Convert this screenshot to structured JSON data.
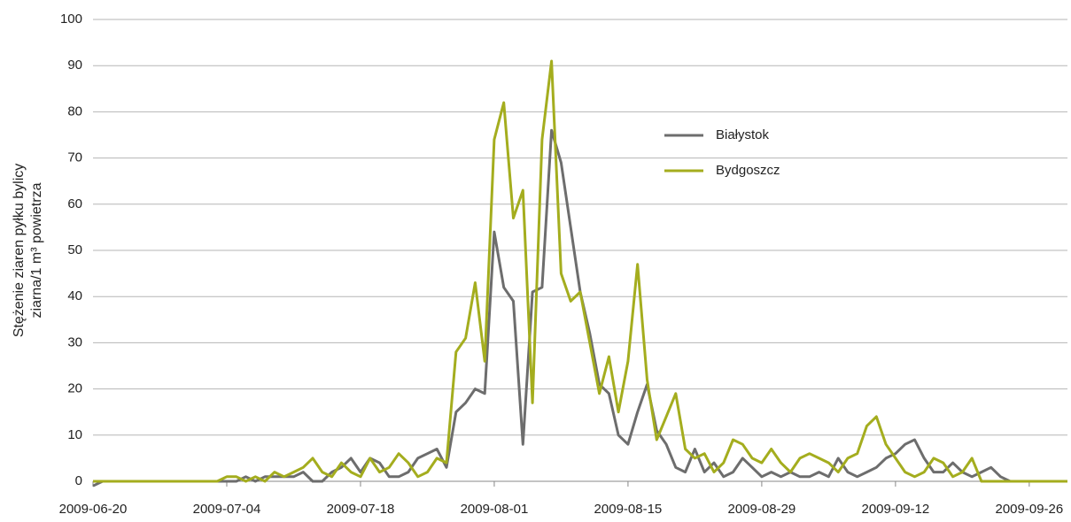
{
  "chart_data": {
    "type": "line",
    "ylabel": [
      "Stężenie ziaren pyłku bylicy",
      "ziarna/1 m³ powietrza"
    ],
    "x": [
      "2009-06-20",
      "2009-06-21",
      "2009-06-22",
      "2009-06-23",
      "2009-06-24",
      "2009-06-25",
      "2009-06-26",
      "2009-06-27",
      "2009-06-28",
      "2009-06-29",
      "2009-06-30",
      "2009-07-01",
      "2009-07-02",
      "2009-07-03",
      "2009-07-04",
      "2009-07-05",
      "2009-07-06",
      "2009-07-07",
      "2009-07-08",
      "2009-07-09",
      "2009-07-10",
      "2009-07-11",
      "2009-07-12",
      "2009-07-13",
      "2009-07-14",
      "2009-07-15",
      "2009-07-16",
      "2009-07-17",
      "2009-07-18",
      "2009-07-19",
      "2009-07-20",
      "2009-07-21",
      "2009-07-22",
      "2009-07-23",
      "2009-07-24",
      "2009-07-25",
      "2009-07-26",
      "2009-07-27",
      "2009-07-28",
      "2009-07-29",
      "2009-07-30",
      "2009-07-31",
      "2009-08-01",
      "2009-08-02",
      "2009-08-03",
      "2009-08-04",
      "2009-08-05",
      "2009-08-06",
      "2009-08-07",
      "2009-08-08",
      "2009-08-09",
      "2009-08-10",
      "2009-08-11",
      "2009-08-12",
      "2009-08-13",
      "2009-08-14",
      "2009-08-15",
      "2009-08-16",
      "2009-08-17",
      "2009-08-18",
      "2009-08-19",
      "2009-08-20",
      "2009-08-21",
      "2009-08-22",
      "2009-08-23",
      "2009-08-24",
      "2009-08-25",
      "2009-08-26",
      "2009-08-27",
      "2009-08-28",
      "2009-08-29",
      "2009-08-30",
      "2009-08-31",
      "2009-09-01",
      "2009-09-02",
      "2009-09-03",
      "2009-09-04",
      "2009-09-05",
      "2009-09-06",
      "2009-09-07",
      "2009-09-08",
      "2009-09-09",
      "2009-09-10",
      "2009-09-11",
      "2009-09-12",
      "2009-09-13",
      "2009-09-14",
      "2009-09-15",
      "2009-09-16",
      "2009-09-17",
      "2009-09-18",
      "2009-09-19",
      "2009-09-20",
      "2009-09-21",
      "2009-09-22",
      "2009-09-23",
      "2009-09-24",
      "2009-09-25",
      "2009-09-26",
      "2009-09-27",
      "2009-09-28",
      "2009-09-29",
      "2009-09-30"
    ],
    "series": [
      {
        "name": "Białystok",
        "color": "#6d6d6d",
        "values": [
          -1,
          0,
          0,
          0,
          0,
          0,
          0,
          0,
          0,
          0,
          0,
          0,
          0,
          0,
          0,
          0,
          1,
          0,
          1,
          1,
          1,
          1,
          2,
          0,
          0,
          2,
          3,
          5,
          2,
          5,
          4,
          1,
          1,
          2,
          5,
          6,
          7,
          3,
          15,
          17,
          20,
          19,
          54,
          42,
          39,
          8,
          41,
          42,
          76,
          69,
          55,
          41,
          32,
          21,
          19,
          10,
          8,
          15,
          21,
          11,
          8,
          3,
          2,
          7,
          2,
          4,
          1,
          2,
          5,
          3,
          1,
          2,
          1,
          2,
          1,
          1,
          2,
          1,
          5,
          2,
          1,
          2,
          3,
          5,
          6,
          8,
          9,
          5,
          2,
          2,
          4,
          2,
          1,
          2,
          3,
          1,
          0,
          0,
          0,
          0,
          0,
          0,
          0
        ]
      },
      {
        "name": "Bydgoszcz",
        "color": "#a4ad1e",
        "values": [
          0,
          0,
          0,
          0,
          0,
          0,
          0,
          0,
          0,
          0,
          0,
          0,
          0,
          0,
          1,
          1,
          0,
          1,
          0,
          2,
          1,
          2,
          3,
          5,
          2,
          1,
          4,
          2,
          1,
          5,
          2,
          3,
          6,
          4,
          1,
          2,
          5,
          4,
          28,
          31,
          43,
          26,
          74,
          82,
          57,
          63,
          17,
          74,
          91,
          45,
          39,
          41,
          30,
          19,
          27,
          15,
          26,
          47,
          22,
          9,
          14,
          19,
          7,
          5,
          6,
          2,
          4,
          9,
          8,
          5,
          4,
          7,
          4,
          2,
          5,
          6,
          5,
          4,
          2,
          5,
          6,
          12,
          14,
          8,
          5,
          2,
          1,
          2,
          5,
          4,
          1,
          2,
          5,
          0,
          0,
          0,
          0,
          0,
          0,
          0,
          0,
          0,
          0
        ]
      }
    ],
    "xlim": [
      "2009-06-20",
      "2009-09-30"
    ],
    "xticks": [
      "2009-06-20",
      "2009-07-04",
      "2009-07-18",
      "2009-08-01",
      "2009-08-15",
      "2009-08-29",
      "2009-09-12",
      "2009-09-26"
    ],
    "ylim": [
      0,
      100
    ],
    "yticks": [
      0,
      10,
      20,
      30,
      40,
      50,
      60,
      70,
      80,
      90,
      100
    ],
    "grid": true,
    "legend": "upper right"
  }
}
